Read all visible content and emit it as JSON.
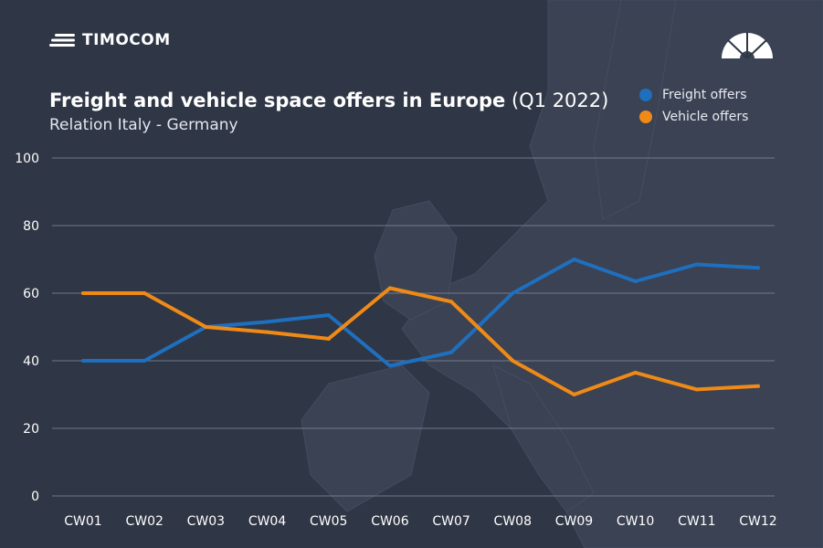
{
  "brand": {
    "name": "TIMOCOM"
  },
  "icons": {
    "brand_logo": "speed-lines-icon",
    "gauge": "speedometer-icon"
  },
  "colors": {
    "background": "#2f3645",
    "freight": "#1f6fbf",
    "vehicle": "#ef8a17",
    "grid": "#7a8294",
    "text": "#ffffff"
  },
  "chart_data": {
    "type": "line",
    "title": "Freight and vehicle space offers in Europe",
    "title_period": "(Q1 2022)",
    "subtitle": "Relation Italy - Germany",
    "xlabel": "",
    "ylabel": "",
    "ylim": [
      0,
      100
    ],
    "yticks": [
      "0",
      "20",
      "40",
      "60",
      "80",
      "100"
    ],
    "grid": true,
    "legend_position": "top-right",
    "categories": [
      "CW01",
      "CW02",
      "CW03",
      "CW04",
      "CW05",
      "CW06",
      "CW07",
      "CW08",
      "CW09",
      "CW10",
      "CW11",
      "CW12"
    ],
    "series": [
      {
        "name": "Freight offers",
        "color": "#1f6fbf",
        "values": [
          40,
          40,
          50,
          51.5,
          53.5,
          38.5,
          42.5,
          60,
          70,
          63.5,
          68.5,
          67.5
        ]
      },
      {
        "name": "Vehicle offers",
        "color": "#ef8a17",
        "values": [
          60,
          60,
          50,
          48.5,
          46.5,
          61.5,
          57.5,
          40,
          30,
          36.5,
          31.5,
          32.5
        ]
      }
    ]
  }
}
